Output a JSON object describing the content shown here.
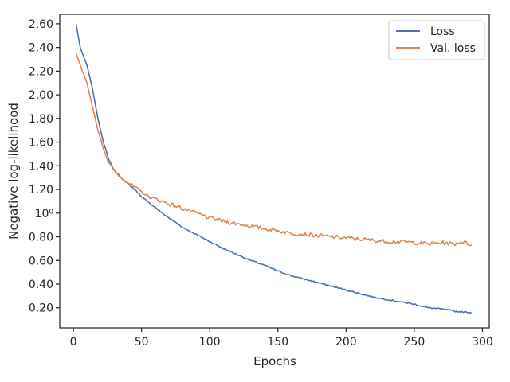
{
  "chart_data": {
    "type": "line",
    "xlabel": "Epochs",
    "ylabel": "Negative log-likelihood",
    "xlim": [
      -10,
      305
    ],
    "ylim": [
      0.03,
      2.68
    ],
    "x_ticks": [
      0,
      50,
      100,
      150,
      200,
      250,
      300
    ],
    "y_ticks": [
      {
        "value": 0.2,
        "label": "0.20"
      },
      {
        "value": 0.4,
        "label": "0.40"
      },
      {
        "value": 0.6,
        "label": "0.60"
      },
      {
        "value": 0.8,
        "label": "0.80"
      },
      {
        "value": 1.0,
        "label": "10⁰"
      },
      {
        "value": 1.2,
        "label": "1.20"
      },
      {
        "value": 1.4,
        "label": "1.40"
      },
      {
        "value": 1.6,
        "label": "1.60"
      },
      {
        "value": 1.8,
        "label": "1.80"
      },
      {
        "value": 2.0,
        "label": "2.00"
      },
      {
        "value": 2.2,
        "label": "2.20"
      },
      {
        "value": 2.4,
        "label": "2.40"
      },
      {
        "value": 2.6,
        "label": "2.60"
      }
    ],
    "grid": false,
    "legend_position": "top-right",
    "series": [
      {
        "name": "Loss",
        "color": "#4c72b0",
        "x": [
          2,
          5,
          10,
          14,
          18,
          22,
          26,
          30,
          35,
          40,
          45,
          50,
          55,
          60,
          65,
          70,
          75,
          80,
          90,
          100,
          110,
          120,
          130,
          140,
          150,
          160,
          170,
          180,
          190,
          200,
          210,
          220,
          230,
          240,
          250,
          260,
          270,
          280,
          285,
          292
        ],
        "y": [
          2.6,
          2.4,
          2.25,
          2.05,
          1.8,
          1.6,
          1.45,
          1.36,
          1.3,
          1.25,
          1.2,
          1.14,
          1.09,
          1.05,
          1.0,
          0.96,
          0.92,
          0.88,
          0.82,
          0.76,
          0.7,
          0.65,
          0.6,
          0.56,
          0.51,
          0.47,
          0.44,
          0.41,
          0.38,
          0.35,
          0.32,
          0.29,
          0.27,
          0.25,
          0.23,
          0.2,
          0.19,
          0.17,
          0.165,
          0.16
        ]
      },
      {
        "name": "Val. loss",
        "color": "#dd8452",
        "x": [
          2,
          5,
          10,
          14,
          18,
          22,
          26,
          30,
          35,
          40,
          45,
          50,
          55,
          60,
          65,
          70,
          75,
          80,
          90,
          100,
          110,
          120,
          130,
          140,
          150,
          160,
          170,
          180,
          190,
          200,
          210,
          220,
          230,
          240,
          250,
          260,
          270,
          280,
          285,
          292
        ],
        "y": [
          2.35,
          2.25,
          2.1,
          1.9,
          1.7,
          1.55,
          1.42,
          1.36,
          1.3,
          1.26,
          1.22,
          1.18,
          1.14,
          1.12,
          1.1,
          1.08,
          1.06,
          1.04,
          1.0,
          0.96,
          0.93,
          0.91,
          0.89,
          0.87,
          0.85,
          0.83,
          0.82,
          0.81,
          0.8,
          0.79,
          0.78,
          0.77,
          0.76,
          0.76,
          0.75,
          0.74,
          0.75,
          0.74,
          0.76,
          0.73
        ]
      }
    ]
  }
}
